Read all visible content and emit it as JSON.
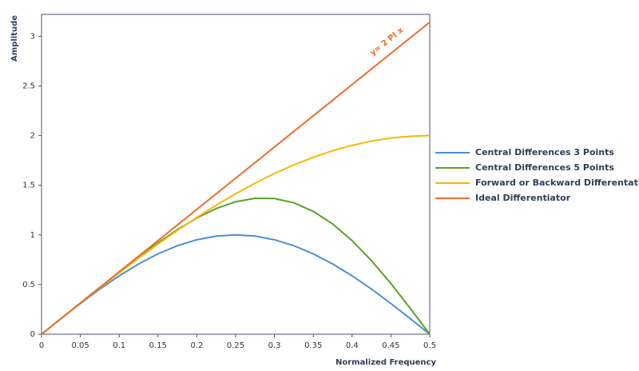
{
  "chart_data": {
    "type": "line",
    "x_label": "Normalized Frequency",
    "y_label": "Amplitude",
    "annotation": "y= 2 PI x",
    "x": [
      0,
      0.025,
      0.05,
      0.075,
      0.1,
      0.125,
      0.15,
      0.175,
      0.2,
      0.225,
      0.25,
      0.275,
      0.3,
      0.325,
      0.35,
      0.375,
      0.4,
      0.425,
      0.45,
      0.475,
      0.5
    ],
    "series": [
      {
        "name": "Central Differences 3 Points",
        "color": "#4a90d9",
        "values": [
          0,
          0.1564,
          0.309,
          0.454,
          0.5878,
          0.7071,
          0.809,
          0.891,
          0.9511,
          0.9877,
          1,
          0.9877,
          0.9511,
          0.891,
          0.809,
          0.7071,
          0.5878,
          0.454,
          0.309,
          0.1564,
          0
        ]
      },
      {
        "name": "Central Differences 5 Points",
        "color": "#5aa02c",
        "values": [
          0,
          0.157,
          0.314,
          0.4705,
          0.6252,
          0.7761,
          0.9202,
          1.0532,
          1.1702,
          1.2654,
          1.3333,
          1.3684,
          1.3661,
          1.3228,
          1.2372,
          1.1095,
          0.9423,
          0.7402,
          0.51,
          0.26,
          0
        ]
      },
      {
        "name": "Forward or Backward Differentation",
        "color": "#f5b800",
        "values": [
          0,
          0.1569,
          0.3129,
          0.4669,
          0.618,
          0.7654,
          0.908,
          1.045,
          1.1756,
          1.2989,
          1.4142,
          1.5208,
          1.618,
          1.7053,
          1.782,
          1.8478,
          1.9021,
          1.9447,
          1.9754,
          1.9938,
          2
        ]
      },
      {
        "name": "Ideal Differentiator",
        "color": "#e8702a",
        "values": [
          0,
          0.1571,
          0.3142,
          0.4712,
          0.6283,
          0.7854,
          0.9425,
          1.0996,
          1.2566,
          1.4137,
          1.5708,
          1.7279,
          1.885,
          2.042,
          2.1991,
          2.3562,
          2.5133,
          2.6704,
          2.8274,
          2.9845,
          3.1416
        ]
      }
    ],
    "xlim": [
      0,
      0.5
    ],
    "xticks": [
      0,
      0.05,
      0.1,
      0.15,
      0.2,
      0.25,
      0.3,
      0.35,
      0.4,
      0.45,
      0.5
    ],
    "ylim": [
      0,
      3.22
    ],
    "yticks": [
      0,
      0.5,
      1,
      1.5,
      2,
      2.5,
      3
    ],
    "grid": false,
    "legend": "right"
  }
}
